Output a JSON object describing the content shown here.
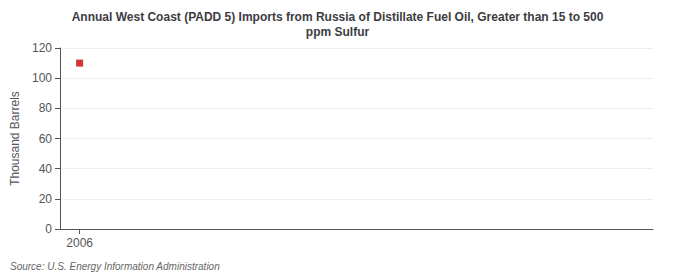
{
  "chart_data": {
    "type": "scatter",
    "title": "Annual West Coast (PADD 5) Imports from Russia of Distillate Fuel Oil, Greater than 15 to 500\nppm Sulfur",
    "ylabel": "Thousand Barrels",
    "annotations": [
      "Source: U.S. Energy Information Administration"
    ],
    "x": [
      2006
    ],
    "values": [
      110
    ],
    "color": "#cc0000",
    "marker": "square",
    "xlim": [
      2005.4,
      2023.5
    ],
    "ylim": [
      0,
      120
    ],
    "xticks": [
      2006
    ],
    "yticks": [
      0,
      20,
      40,
      60,
      80,
      100,
      120
    ],
    "grid": true
  }
}
